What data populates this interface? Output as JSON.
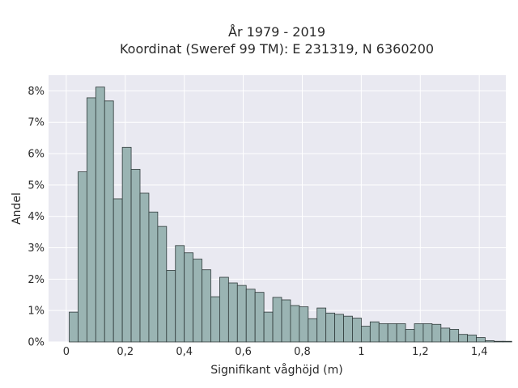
{
  "chart_data": {
    "type": "bar",
    "title": "År 1979 - 2019",
    "subtitle": "Koordinat (Sweref 99 TM): E 231319, N 6360200",
    "xlabel": "Signifikant våghöjd (m)",
    "ylabel": "Andel",
    "bin_width": 0.03,
    "x_start": 0.01,
    "xlim": [
      -0.06,
      1.49
    ],
    "ylim": [
      0,
      8.5
    ],
    "x_ticks": [
      {
        "value": 0,
        "label": "0"
      },
      {
        "value": 0.2,
        "label": "0,2"
      },
      {
        "value": 0.4,
        "label": "0,4"
      },
      {
        "value": 0.6,
        "label": "0,6"
      },
      {
        "value": 0.8,
        "label": "0,8"
      },
      {
        "value": 1.0,
        "label": "1"
      },
      {
        "value": 1.2,
        "label": "1,2"
      },
      {
        "value": 1.4,
        "label": "1,4"
      }
    ],
    "y_ticks": [
      {
        "value": 0,
        "label": "0%"
      },
      {
        "value": 1,
        "label": "1%"
      },
      {
        "value": 2,
        "label": "2%"
      },
      {
        "value": 3,
        "label": "3%"
      },
      {
        "value": 4,
        "label": "4%"
      },
      {
        "value": 5,
        "label": "5%"
      },
      {
        "value": 6,
        "label": "6%"
      },
      {
        "value": 7,
        "label": "7%"
      },
      {
        "value": 8,
        "label": "8%"
      }
    ],
    "values": [
      0.95,
      5.42,
      7.78,
      8.12,
      7.68,
      4.56,
      6.2,
      5.5,
      4.74,
      4.14,
      3.68,
      2.28,
      3.07,
      2.84,
      2.64,
      2.3,
      1.44,
      2.06,
      1.88,
      1.8,
      1.68,
      1.58,
      0.95,
      1.42,
      1.34,
      1.16,
      1.12,
      0.74,
      1.08,
      0.92,
      0.88,
      0.82,
      0.76,
      0.5,
      0.64,
      0.58,
      0.58,
      0.58,
      0.4,
      0.58,
      0.58,
      0.56,
      0.44,
      0.4,
      0.24,
      0.22,
      0.14,
      0.04,
      0.02,
      0.02
    ],
    "grid": true,
    "colors": {
      "plot_background": "#e9e9f1",
      "grid": "#ffffff",
      "bar_fill": "#9ab4b3",
      "bar_stroke": "#2f3a3a"
    }
  }
}
